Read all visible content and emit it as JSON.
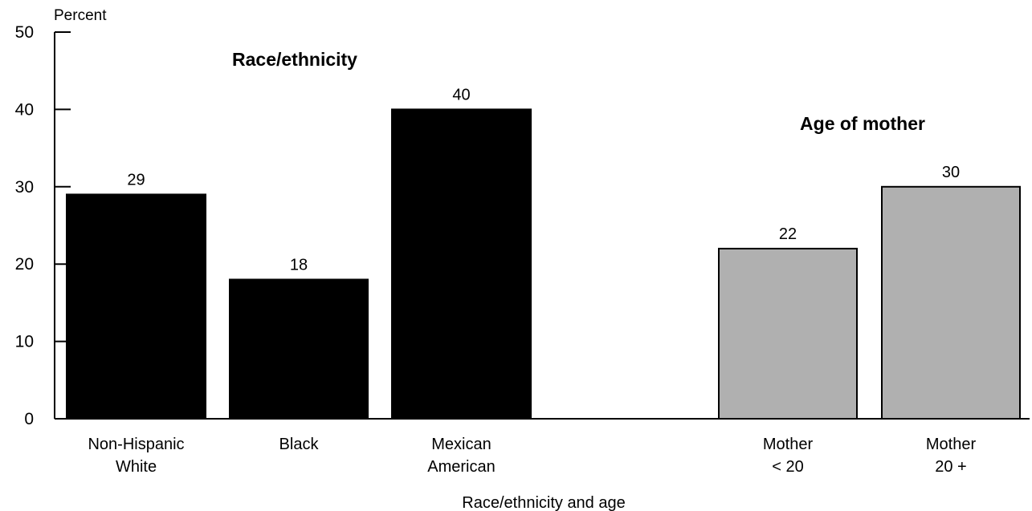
{
  "chart_data": {
    "type": "bar",
    "title": "",
    "xlabel": "Race/ethnicity and age",
    "ylabel": "Percent",
    "ylim": [
      0,
      50
    ],
    "yticks": [
      "0",
      "10",
      "20",
      "30",
      "40",
      "50"
    ],
    "grid": false,
    "groups": [
      {
        "label": "Race/ethnicity",
        "color": "#000000",
        "bars": [
          {
            "category": [
              "Non-Hispanic",
              "White"
            ],
            "value": 29,
            "value_label": "29"
          },
          {
            "category": [
              "Black"
            ],
            "value": 18,
            "value_label": "18"
          },
          {
            "category": [
              "Mexican",
              "American"
            ],
            "value": 40,
            "value_label": "40"
          }
        ]
      },
      {
        "label": "Age of mother",
        "color": "#b0b0b0",
        "bars": [
          {
            "category": [
              "Mother",
              "< 20"
            ],
            "value": 22,
            "value_label": "22"
          },
          {
            "category": [
              "Mother",
              "20 +"
            ],
            "value": 30,
            "value_label": "30"
          }
        ]
      }
    ]
  }
}
